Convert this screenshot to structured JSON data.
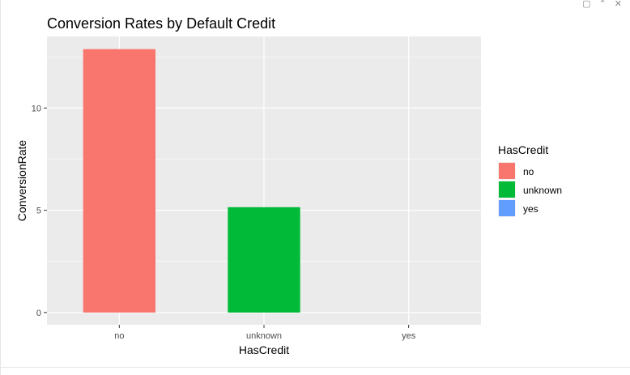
{
  "window": {
    "controls": [
      "copy-icon",
      "collapse-icon",
      "close-icon"
    ],
    "close_glyph": "✕",
    "collapse_glyph": "⌃"
  },
  "chart_data": {
    "type": "bar",
    "title": "Conversion Rates by Default Credit",
    "xlabel": "HasCredit",
    "ylabel": "ConversionRate",
    "categories": [
      "no",
      "unknown",
      "yes"
    ],
    "values": [
      12.88,
      5.15,
      0.0
    ],
    "ylim": [
      -0.6,
      13.5
    ],
    "yticks": [
      0,
      5,
      10
    ],
    "grid": true,
    "colors": [
      "#F8766D",
      "#00BA38",
      "#619CFF"
    ],
    "panel_background": "#EBEBEB",
    "legend": {
      "title": "HasCredit",
      "placement": "right",
      "entries": [
        "no",
        "unknown",
        "yes"
      ]
    }
  }
}
